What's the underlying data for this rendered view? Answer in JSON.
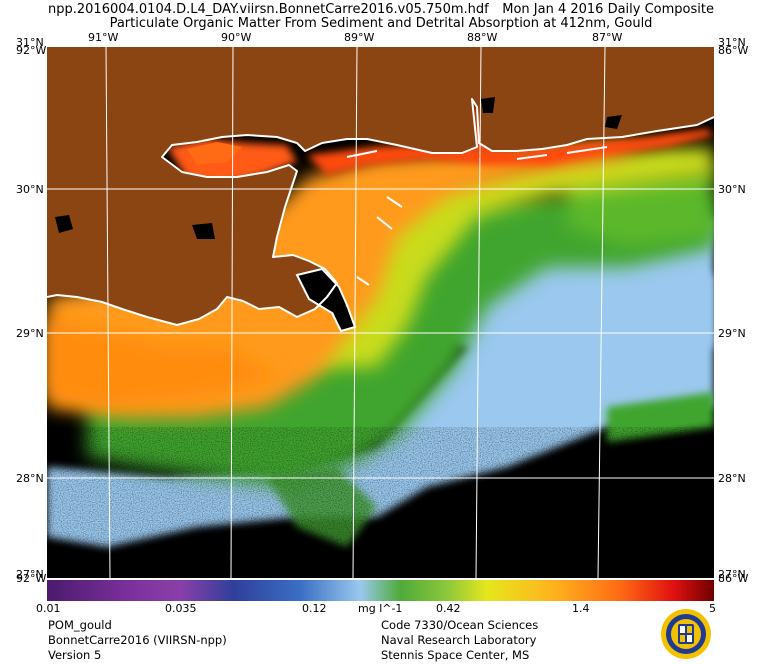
{
  "header": {
    "filename": "npp.2016004.0104.D.L4_DAY.viirsn.BonnetCarre2016.v05.750m.hdf",
    "composite": "Mon Jan  4 2016 Daily Composite",
    "product_title": "Particulate Organic Matter From Sediment and Detrital Absorption at 412nm, Gould"
  },
  "map": {
    "lat_labels": [
      "31°N",
      "30°N",
      "29°N",
      "28°N"
    ],
    "lon_labels": [
      "91°W",
      "90°W",
      "89°W",
      "88°W",
      "87°W"
    ],
    "corner_labels": {
      "top_left_lat": "31°N",
      "top_left_lon": "92°W",
      "top_right_lat": "31°N",
      "top_right_lon": "86°W",
      "bottom_left_lat": "27°N",
      "bottom_left_lon": "92°W",
      "bottom_right_lat": "27°N",
      "bottom_right_lon": "86°W"
    },
    "colors": {
      "land": "#8b4513",
      "nodata": "#000000",
      "coast": "#ffffff",
      "grid": "#ffffff"
    }
  },
  "colorbar": {
    "ticks": [
      "0.01",
      "0.035",
      "0.12",
      "0.42",
      "1.4",
      "5"
    ],
    "units": "mg l^-1",
    "min": 0.01,
    "max": 5,
    "scale": "log"
  },
  "footer": {
    "left": [
      "POM_gould",
      "BonnetCarre2016 (VIIRSN-npp)",
      "Version 5"
    ],
    "right": [
      "Code 7330/Ocean Sciences",
      "Naval Research Laboratory",
      "Stennis Space Center, MS"
    ]
  }
}
